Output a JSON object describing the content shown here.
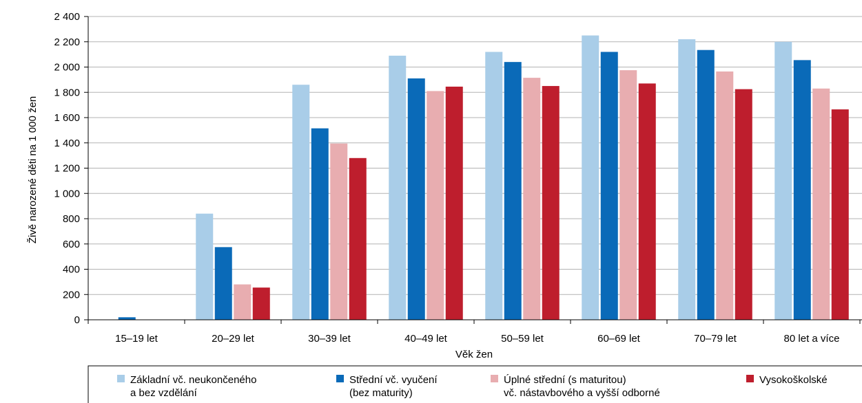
{
  "chart_data": {
    "type": "bar",
    "title": "",
    "xlabel": "Věk žen",
    "ylabel": "Živě narozené děti na 1 000 žen",
    "ylim": [
      0,
      2400
    ],
    "yticks": [
      "0",
      "200",
      "400",
      "600",
      "800",
      "1 000",
      "1 200",
      "1 400",
      "1 600",
      "1 800",
      "2 000",
      "2 200",
      "2 400"
    ],
    "grid": true,
    "legend_position": "bottom",
    "categories": [
      "15–19 let",
      "20–29 let",
      "30–39 let",
      "40–49 let",
      "50–59 let",
      "60–69 let",
      "70–79 let",
      "80 let a více"
    ],
    "series": [
      {
        "name": "Základní vč. neukončeného a bez vzdělání",
        "legend_lines": [
          "Základní vč. neukončeného",
          "a bez vzdělání"
        ],
        "color": "#a9cde8",
        "values": [
          0,
          840,
          1860,
          2090,
          2120,
          2250,
          2220,
          2200
        ]
      },
      {
        "name": "Střední vč. vyučení (bez maturity)",
        "legend_lines": [
          "Střední vč. vyučení",
          "(bez maturity)"
        ],
        "color": "#0a6ab8",
        "values": [
          20,
          575,
          1515,
          1910,
          2040,
          2120,
          2135,
          2055
        ]
      },
      {
        "name": "Úplné střední (s maturitou) vč. nástavbového a vyšší odborné",
        "legend_lines": [
          "Úplné střední (s maturitou)",
          "vč. nástavbového a vyšší odborné"
        ],
        "color": "#e8adb0",
        "values": [
          0,
          280,
          1395,
          1810,
          1915,
          1975,
          1965,
          1830
        ]
      },
      {
        "name": "Vysokoškolské",
        "legend_lines": [
          "Vysokoškolské"
        ],
        "color": "#be1e2d",
        "values": [
          0,
          255,
          1280,
          1845,
          1850,
          1870,
          1825,
          1665
        ]
      }
    ]
  }
}
